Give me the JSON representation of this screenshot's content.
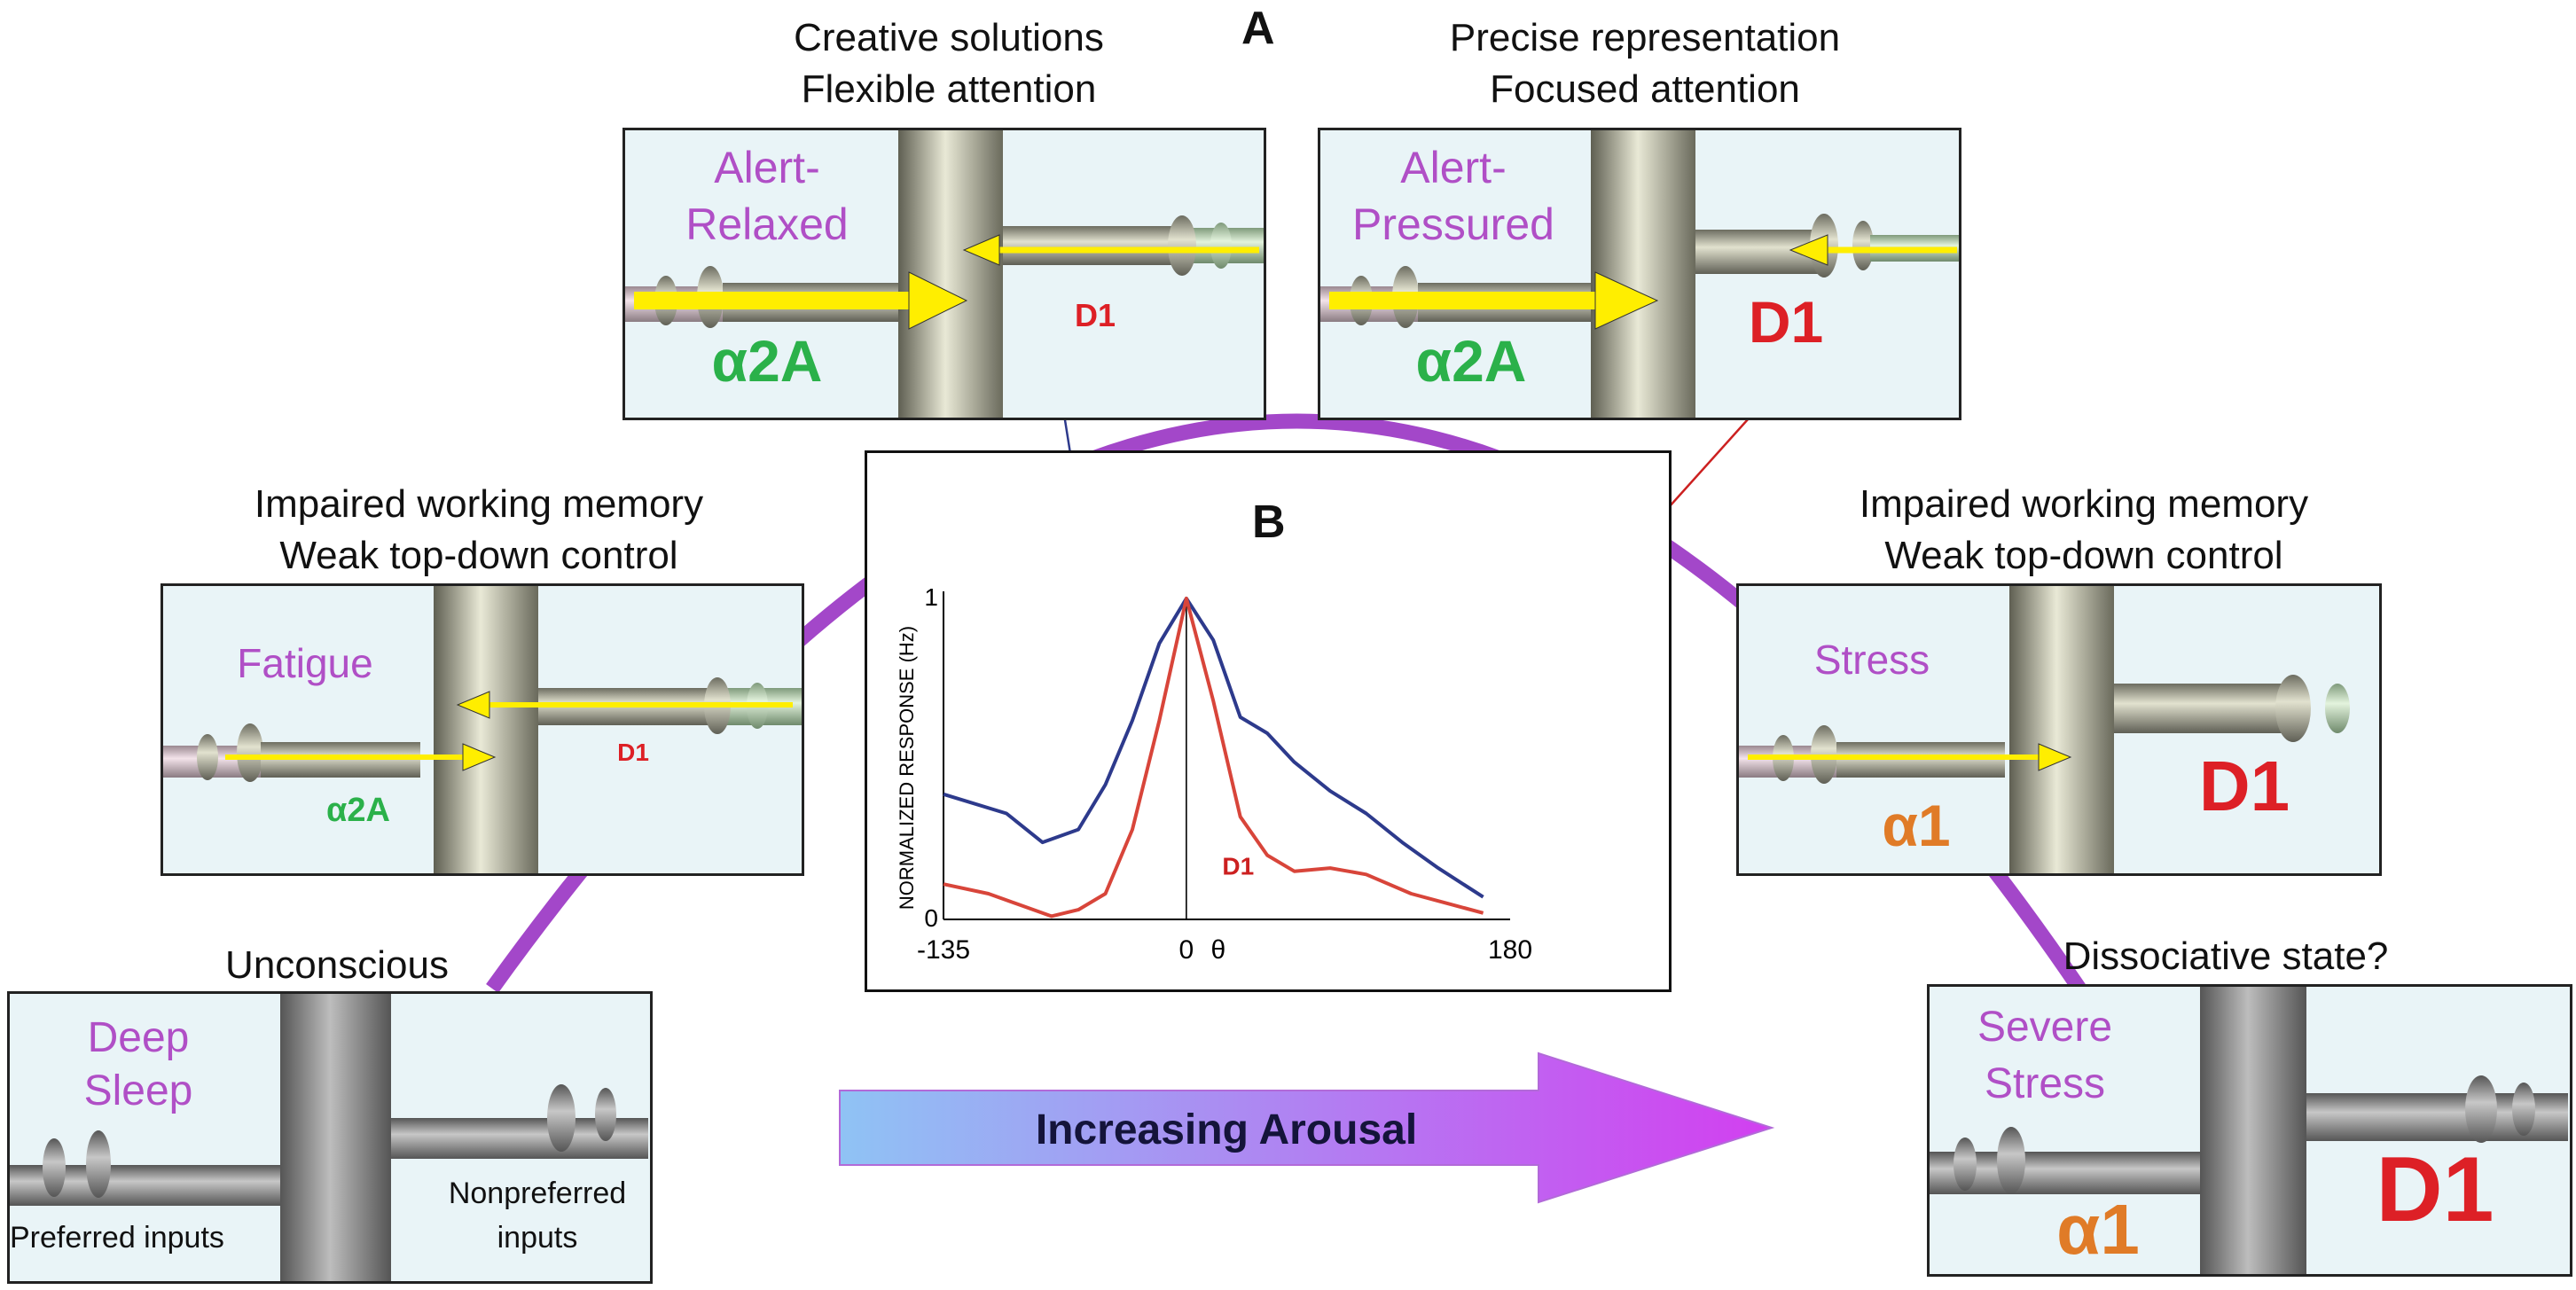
{
  "panel_labels": {
    "a": "A",
    "b": "B"
  },
  "states": {
    "deep_sleep": {
      "caption": [
        "Unconscious"
      ],
      "state": "Deep Sleep",
      "left_text": "Preferred inputs",
      "right_text": "Nonpreferred inputs"
    },
    "fatigue": {
      "caption": [
        "Impaired working memory",
        "Weak top-down control"
      ],
      "state": "Fatigue",
      "alpha": "α2A",
      "d1": "D1"
    },
    "alert_relaxed": {
      "caption": [
        "Creative solutions",
        "Flexible attention"
      ],
      "state": "Alert-Relaxed",
      "alpha": "α2A",
      "d1": "D1"
    },
    "alert_pressured": {
      "caption": [
        "Precise representation",
        "Focused attention"
      ],
      "state": "Alert-Pressured",
      "alpha": "α2A",
      "d1": "D1"
    },
    "stress": {
      "caption": [
        "Impaired working memory",
        "Weak top-down control"
      ],
      "state": "Stress",
      "alpha": "α1",
      "d1": "D1"
    },
    "severe_stress": {
      "caption": [
        "Dissociative state?"
      ],
      "state": "Severe Stress",
      "alpha": "α1",
      "d1": "D1"
    }
  },
  "arousal_arrow": {
    "label": "Increasing Arousal"
  },
  "chart_data": {
    "type": "line",
    "ylabel": "NORMALIZED RESPONSE (Hz)",
    "x_ticks": [
      "-135",
      "0",
      "180"
    ],
    "x_symbol": "θ",
    "y_ticks": [
      "0",
      "1"
    ],
    "xlim": [
      -135,
      180
    ],
    "ylim": [
      0,
      1
    ],
    "annotation": "D1",
    "colors": {
      "blue": "#2d3a8c",
      "red": "#d8453a"
    },
    "series": [
      {
        "color_key": "blue",
        "x": [
          -135,
          -100,
          -80,
          -60,
          -45,
          -30,
          -15,
          0,
          15,
          30,
          45,
          60,
          80,
          100,
          120,
          140,
          165
        ],
        "y": [
          0.39,
          0.33,
          0.24,
          0.28,
          0.42,
          0.62,
          0.86,
          1.0,
          0.87,
          0.63,
          0.58,
          0.49,
          0.4,
          0.33,
          0.24,
          0.16,
          0.07
        ]
      },
      {
        "color_key": "red",
        "x": [
          -135,
          -110,
          -90,
          -75,
          -60,
          -45,
          -30,
          -15,
          0,
          15,
          30,
          45,
          60,
          80,
          100,
          125,
          165
        ],
        "y": [
          0.11,
          0.08,
          0.04,
          0.01,
          0.03,
          0.08,
          0.28,
          0.62,
          1.0,
          0.68,
          0.32,
          0.2,
          0.15,
          0.16,
          0.14,
          0.08,
          0.02
        ]
      }
    ]
  }
}
